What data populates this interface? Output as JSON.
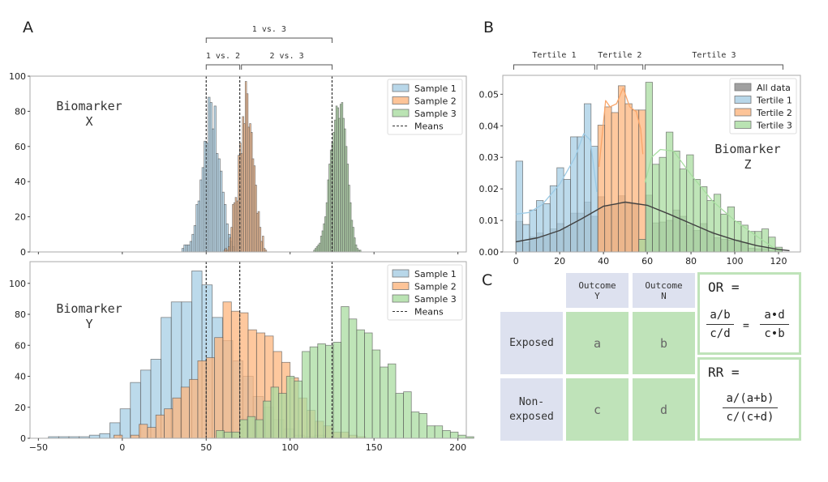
{
  "panels": {
    "A": {
      "letter": "A"
    },
    "B": {
      "letter": "B"
    },
    "C": {
      "letter": "C"
    }
  },
  "colors": {
    "sample1": "#a6cde4",
    "sample2": "#fdb57e",
    "sample3": "#a9dca0",
    "all_data": "#808080",
    "edge": "#555555",
    "cell_header": "#dde1ef",
    "cell_value": "#bfe3b9"
  },
  "brackets_A": [
    {
      "label": "1 vs. 3",
      "from": 50,
      "to": 125,
      "level": 2
    },
    {
      "label": "1 vs. 2",
      "from": 50,
      "to": 70,
      "level": 1
    },
    {
      "label": "2 vs. 3",
      "from": 71,
      "to": 125,
      "level": 1
    }
  ],
  "brackets_B": [
    {
      "label": "Tertile 1",
      "from": -1,
      "to": 36
    },
    {
      "label": "Tertile 2",
      "from": 37,
      "to": 58
    },
    {
      "label": "Tertile 3",
      "from": 59,
      "to": 122
    }
  ],
  "chart_data": [
    {
      "id": "biomarker-x",
      "type": "bar",
      "annotation": [
        "Biomarker",
        "X"
      ],
      "xlim": [
        -55,
        205
      ],
      "ylim": [
        0,
        100
      ],
      "yticks": [
        0,
        20,
        40,
        60,
        80,
        100
      ],
      "xticks": [
        -50,
        0,
        50,
        100,
        150,
        200
      ],
      "show_xtick_labels": false,
      "legend": {
        "position": "top-right",
        "entries": [
          "Sample 1",
          "Sample 2",
          "Sample 3",
          "Means"
        ]
      },
      "means": [
        50,
        70,
        125
      ],
      "series": [
        {
          "name": "Sample 1",
          "bin_start": 35.5,
          "bin_width": 1.2,
          "values": [
            2,
            4,
            4,
            4,
            6,
            10,
            15,
            27,
            29,
            41,
            48,
            63,
            62,
            88,
            85,
            70,
            83,
            56,
            53,
            46,
            34,
            27,
            16,
            10,
            6,
            3
          ]
        },
        {
          "name": "Sample 2",
          "bin_start": 60.5,
          "bin_width": 0.85,
          "values": [
            1,
            2,
            1,
            3,
            8,
            14,
            27,
            28,
            31,
            29,
            55,
            62,
            56,
            77,
            73,
            97,
            90,
            71,
            73,
            68,
            53,
            49,
            38,
            22,
            23,
            14,
            6,
            9,
            2,
            1
          ]
        },
        {
          "name": "Sample 3",
          "bin_start": 114,
          "bin_width": 0.83,
          "values": [
            1,
            2,
            3,
            4,
            5,
            9,
            12,
            16,
            20,
            28,
            41,
            50,
            58,
            62,
            68,
            75,
            83,
            82,
            76,
            84,
            85,
            76,
            70,
            60,
            50,
            38,
            28,
            18,
            14,
            8,
            4,
            2,
            1,
            1
          ]
        }
      ]
    },
    {
      "id": "biomarker-y",
      "type": "bar",
      "annotation": [
        "Biomarker",
        "Y"
      ],
      "xlim": [
        -55,
        205
      ],
      "ylim": [
        0,
        114
      ],
      "yticks": [
        0,
        20,
        40,
        60,
        80,
        100
      ],
      "xticks": [
        -50,
        0,
        50,
        100,
        150,
        200
      ],
      "legend": {
        "position": "top-right",
        "entries": [
          "Sample 1",
          "Sample 2",
          "Sample 3",
          "Means"
        ]
      },
      "means": [
        50,
        70,
        125
      ],
      "series": [
        {
          "name": "Sample 1",
          "bin_start": -44,
          "bin_width": 6.1,
          "values": [
            1,
            1,
            1,
            1,
            2,
            3,
            10,
            19,
            36,
            44,
            51,
            78,
            88,
            88,
            108,
            99,
            78,
            63,
            50,
            40,
            27,
            20,
            12,
            6,
            2,
            1,
            2
          ]
        },
        {
          "name": "Sample 2",
          "bin_start": -5,
          "bin_width": 5.0,
          "values": [
            2,
            0,
            2,
            9,
            7,
            15,
            19,
            26,
            33,
            38,
            50,
            52,
            65,
            88,
            82,
            81,
            70,
            68,
            66,
            56,
            49,
            39,
            26,
            18,
            11,
            8,
            4,
            4,
            2,
            1
          ]
        },
        {
          "name": "Sample 3",
          "bin_start": 56,
          "bin_width": 4.65,
          "values": [
            5,
            4,
            4,
            12,
            14,
            12,
            24,
            33,
            29,
            40,
            37,
            56,
            59,
            61,
            60,
            62,
            85,
            77,
            70,
            68,
            57,
            46,
            48,
            29,
            30,
            17,
            16,
            8,
            8,
            5,
            4,
            2,
            1
          ]
        }
      ]
    },
    {
      "id": "biomarker-z",
      "type": "bar",
      "annotation": [
        "Biomarker",
        "Z"
      ],
      "xlim": [
        -6,
        130
      ],
      "ylim": [
        0,
        0.056
      ],
      "yticks": [
        0.0,
        0.01,
        0.02,
        0.03,
        0.04,
        0.05
      ],
      "ytick_labels": [
        "0.00",
        "0.01",
        "0.02",
        "0.03",
        "0.04",
        "0.05"
      ],
      "xticks": [
        0,
        20,
        40,
        60,
        80,
        100,
        120
      ],
      "legend": {
        "position": "top-right",
        "entries": [
          "All data",
          "Tertile 1",
          "Tertile 2",
          "Tertile 3"
        ]
      },
      "bin_start": 0,
      "bin_width": 3.12,
      "series": [
        {
          "name": "All data",
          "values": [
            0.0097,
            0.003,
            0.0047,
            0.006,
            0.0052,
            0.0073,
            0.009,
            0.0078,
            0.0123,
            0.0123,
            0.0158,
            0.0113,
            0.0175,
            0.0145,
            0.015,
            0.0178,
            0.0153,
            0.015,
            0.004,
            0.018,
            0.0092,
            0.0095,
            0.01,
            0.0133,
            0.0113,
            0.0085,
            0.0068,
            0.009,
            0.0065,
            0.0045,
            0.004,
            0.0038,
            0.0038,
            0.003,
            0.0012,
            0.001,
            0.001,
            0.0005,
            0.0003
          ]
        },
        {
          "name": "Tertile 1",
          "start_bin": 0,
          "values": [
            0.0288,
            0.0087,
            0.0133,
            0.0163,
            0.0153,
            0.021,
            0.0267,
            0.023,
            0.0365,
            0.0365,
            0.047,
            0.0335
          ]
        },
        {
          "name": "Tertile 2",
          "start_bin": 12,
          "values": [
            0.0402,
            0.046,
            0.0442,
            0.0527,
            0.047,
            0.045,
            0.045
          ]
        },
        {
          "name": "Tertile 3",
          "start_bin": 18,
          "values": [
            0.004,
            0.0538,
            0.0278,
            0.03,
            0.038,
            0.032,
            0.0263,
            0.0308,
            0.023,
            0.0207,
            0.0163,
            0.0183,
            0.012,
            0.0143,
            0.0097,
            0.0085,
            0.0065,
            0.0065,
            0.0073,
            0.0047,
            0.0015
          ]
        }
      ],
      "kde": {
        "All data": [
          [
            0,
            0.0032
          ],
          [
            10,
            0.0045
          ],
          [
            20,
            0.0068
          ],
          [
            30,
            0.0105
          ],
          [
            40,
            0.0145
          ],
          [
            50,
            0.0158
          ],
          [
            60,
            0.0148
          ],
          [
            70,
            0.012
          ],
          [
            80,
            0.009
          ],
          [
            90,
            0.006
          ],
          [
            100,
            0.0038
          ],
          [
            110,
            0.002
          ],
          [
            120,
            0.0008
          ],
          [
            125,
            0.0004
          ]
        ],
        "Tertile 1": [
          [
            0,
            0.012
          ],
          [
            6,
            0.0125
          ],
          [
            12,
            0.015
          ],
          [
            20,
            0.0215
          ],
          [
            27,
            0.03
          ],
          [
            31,
            0.0375
          ],
          [
            34,
            0.0355
          ],
          [
            37,
            0.019
          ]
        ],
        "Tertile 2": [
          [
            38,
            0.027
          ],
          [
            41,
            0.048
          ],
          [
            43,
            0.046
          ],
          [
            46,
            0.047
          ],
          [
            49,
            0.052
          ],
          [
            52,
            0.046
          ],
          [
            55,
            0.0445
          ],
          [
            57,
            0.039
          ],
          [
            58,
            0.031
          ]
        ],
        "Tertile 3": [
          [
            59,
            0.022
          ],
          [
            62,
            0.03
          ],
          [
            66,
            0.0325
          ],
          [
            72,
            0.032
          ],
          [
            80,
            0.0245
          ],
          [
            90,
            0.016
          ],
          [
            100,
            0.01
          ],
          [
            110,
            0.005
          ],
          [
            118,
            0.0012
          ]
        ]
      }
    }
  ],
  "table": {
    "col_headers": [
      [
        "Outcome",
        "Y"
      ],
      [
        "Outcome",
        "N"
      ]
    ],
    "row_headers": [
      [
        "Exposed"
      ],
      [
        "Non-",
        "exposed"
      ]
    ],
    "cells": [
      [
        "a",
        "b"
      ],
      [
        "c",
        "d"
      ]
    ],
    "or_formula": {
      "title": "OR =",
      "left_num": "a/b",
      "left_den": "c/d",
      "equals": "=",
      "right_num": "a•d",
      "right_den": "c•b"
    },
    "rr_formula": {
      "title": "RR =",
      "num": "a/(a+b)",
      "den": "c/(c+d)"
    }
  }
}
